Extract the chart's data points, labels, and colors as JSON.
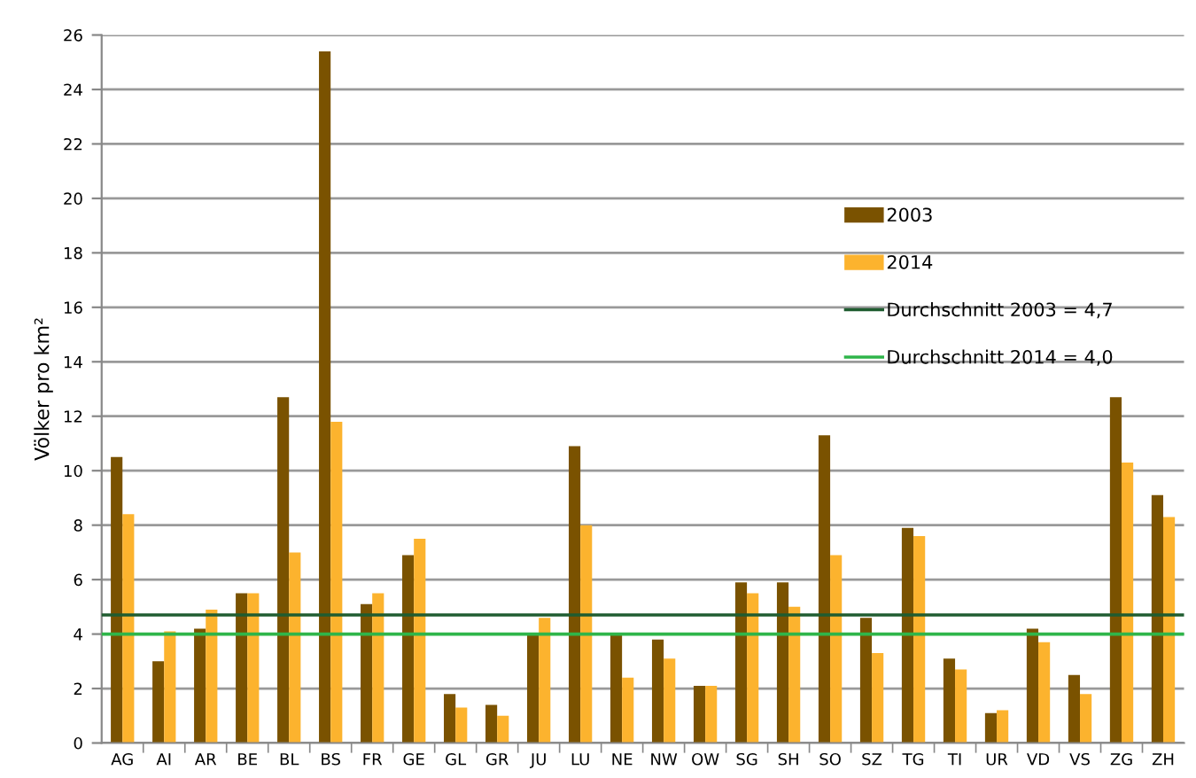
{
  "chart_data": {
    "type": "bar",
    "ylabel": "Völker pro km²",
    "categories": [
      "AG",
      "AI",
      "AR",
      "BE",
      "BL",
      "BS",
      "FR",
      "GE",
      "GL",
      "GR",
      "JU",
      "LU",
      "NE",
      "NW",
      "OW",
      "SG",
      "SH",
      "SO",
      "SZ",
      "TG",
      "TI",
      "UR",
      "VD",
      "VS",
      "ZG",
      "ZH"
    ],
    "series": [
      {
        "name": "2003",
        "color": "#7a5200",
        "values": [
          10.5,
          3.0,
          4.2,
          5.5,
          12.7,
          25.4,
          5.1,
          6.9,
          1.8,
          1.4,
          4.0,
          10.9,
          4.0,
          3.8,
          2.1,
          5.9,
          5.9,
          11.3,
          4.6,
          7.9,
          3.1,
          1.1,
          4.2,
          2.5,
          12.7,
          9.1
        ]
      },
      {
        "name": "2014",
        "color": "#fcb32e",
        "values": [
          8.4,
          4.1,
          4.9,
          5.5,
          7.0,
          11.8,
          5.5,
          7.5,
          1.3,
          1.0,
          4.6,
          8.0,
          2.4,
          3.1,
          2.1,
          5.5,
          5.0,
          6.9,
          3.3,
          7.6,
          2.7,
          1.2,
          3.7,
          1.8,
          10.3,
          8.3
        ]
      }
    ],
    "ref_lines": [
      {
        "axis": "y",
        "value": 4.7,
        "label": "Durchschnitt 2003 = 4,7",
        "color": "#1f5c30",
        "line_style": "solid"
      },
      {
        "axis": "y",
        "value": 4.0,
        "label": "Durchschnitt 2014 = 4,0",
        "color": "#2fb54a",
        "line_style": "solid"
      }
    ],
    "ylim": [
      0,
      26
    ],
    "yticks": [
      0,
      2,
      4,
      6,
      8,
      10,
      12,
      14,
      16,
      18,
      20,
      22,
      24,
      26
    ],
    "grid": "y",
    "legend": "top right"
  }
}
